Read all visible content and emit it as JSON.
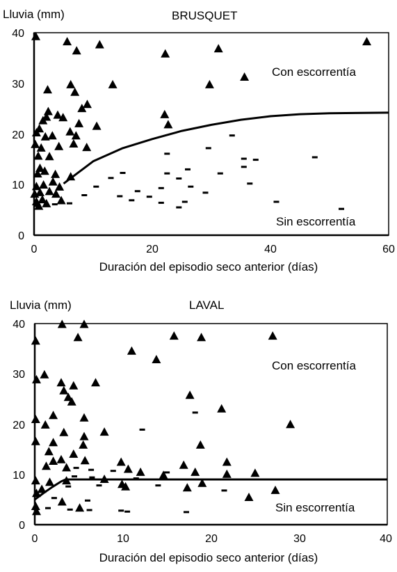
{
  "chart_data": [
    {
      "type": "scatter",
      "title": "BRUSQUET",
      "ylabel": "Lluvia (mm)",
      "xlabel": "Duración del episodio seco anterior (días)",
      "xlim": [
        0,
        60
      ],
      "ylim": [
        0,
        40
      ],
      "xticks": [
        "0",
        "20",
        "40",
        "60"
      ],
      "yticks": [
        "0",
        "10",
        "20",
        "30",
        "40"
      ],
      "grid": false,
      "annotations": [
        "Con escorrentía",
        "Sin escorrentía"
      ],
      "series": [
        {
          "marker": "triangle",
          "points": [
            [
              0.3,
              39.2
            ],
            [
              5.6,
              38.2
            ],
            [
              7.2,
              36.4
            ],
            [
              11.1,
              37.6
            ],
            [
              22.2,
              35.8
            ],
            [
              31.2,
              36.8
            ],
            [
              56.3,
              38.2
            ],
            [
              35.6,
              31.2
            ],
            [
              29.7,
              29.7
            ],
            [
              2.3,
              28.7
            ],
            [
              6.2,
              29.7
            ],
            [
              13.3,
              29.7
            ],
            [
              6.9,
              28.2
            ],
            [
              9.0,
              25.8
            ],
            [
              8.1,
              25.0
            ],
            [
              2.4,
              24.4
            ],
            [
              4.0,
              23.7
            ],
            [
              4.9,
              23.2
            ],
            [
              22.1,
              23.8
            ],
            [
              22.7,
              21.8
            ],
            [
              0.9,
              21.0
            ],
            [
              1.5,
              22.6
            ],
            [
              2.1,
              23.3
            ],
            [
              7.6,
              22.0
            ],
            [
              10.6,
              21.5
            ],
            [
              0.4,
              20.2
            ],
            [
              1.9,
              19.4
            ],
            [
              3.1,
              19.6
            ],
            [
              6.1,
              20.4
            ],
            [
              7.1,
              19.6
            ],
            [
              0.2,
              17.9
            ],
            [
              1.2,
              17.2
            ],
            [
              4.2,
              17.5
            ],
            [
              6.7,
              18.0
            ],
            [
              8.9,
              17.3
            ],
            [
              0.7,
              15.6
            ],
            [
              2.6,
              15.5
            ],
            [
              1.0,
              13.2
            ],
            [
              0.6,
              12.1
            ],
            [
              1.8,
              12.6
            ],
            [
              3.6,
              12.0
            ],
            [
              6.2,
              11.5
            ],
            [
              0.4,
              9.6
            ],
            [
              1.6,
              9.9
            ],
            [
              3.2,
              10.5
            ],
            [
              4.3,
              9.5
            ],
            [
              0.1,
              8.1
            ],
            [
              1.0,
              8.4
            ],
            [
              2.6,
              8.6
            ],
            [
              3.7,
              8.1
            ],
            [
              0.4,
              6.6
            ],
            [
              1.4,
              7.0
            ],
            [
              2.1,
              6.2
            ],
            [
              4.6,
              6.8
            ],
            [
              0.8,
              5.7
            ]
          ]
        },
        {
          "marker": "dash",
          "points": [
            [
              33.5,
              19.7
            ],
            [
              29.5,
              17.2
            ],
            [
              22.5,
              16.1
            ],
            [
              35.5,
              15.1
            ],
            [
              37.5,
              14.9
            ],
            [
              47.5,
              15.4
            ],
            [
              26.0,
              13.0
            ],
            [
              35.5,
              13.5
            ],
            [
              15.0,
              12.3
            ],
            [
              22.5,
              12.2
            ],
            [
              31.5,
              12.2
            ],
            [
              13.0,
              11.3
            ],
            [
              24.5,
              11.2
            ],
            [
              36.5,
              10.2
            ],
            [
              10.5,
              9.6
            ],
            [
              21.5,
              9.3
            ],
            [
              26.5,
              9.6
            ],
            [
              17.5,
              8.7
            ],
            [
              8.5,
              7.9
            ],
            [
              14.5,
              7.7
            ],
            [
              19.5,
              7.6
            ],
            [
              29.0,
              8.4
            ],
            [
              41.0,
              6.6
            ],
            [
              16.5,
              6.9
            ],
            [
              21.5,
              6.4
            ],
            [
              25.5,
              6.6
            ],
            [
              3.5,
              6.1
            ],
            [
              6.0,
              6.3
            ],
            [
              24.5,
              5.5
            ],
            [
              52.0,
              5.2
            ],
            [
              0.5,
              5.8
            ]
          ]
        }
      ],
      "threshold_curve": [
        [
          5.0,
          10.2
        ],
        [
          10.0,
          14.6
        ],
        [
          15.0,
          17.2
        ],
        [
          20.0,
          19.0
        ],
        [
          25.0,
          20.6
        ],
        [
          30.0,
          21.8
        ],
        [
          35.0,
          22.8
        ],
        [
          40.0,
          23.5
        ],
        [
          45.0,
          23.9
        ],
        [
          50.0,
          24.1
        ],
        [
          60.0,
          24.2
        ]
      ]
    },
    {
      "type": "scatter",
      "title": "LAVAL",
      "ylabel": "Lluvia (mm)",
      "xlabel": "Duración del episodio seco anterior (días)",
      "xlim": [
        0,
        40
      ],
      "ylim": [
        0,
        40
      ],
      "xticks": [
        "0",
        "10",
        "20",
        "30",
        "40"
      ],
      "yticks": [
        "0",
        "10",
        "20",
        "30",
        "40"
      ],
      "grid": false,
      "annotations": [
        "Con escorrentía",
        "Sin escorrentía"
      ],
      "series": [
        {
          "marker": "triangle",
          "points": [
            [
              0.1,
              36.5
            ],
            [
              3.1,
              39.8
            ],
            [
              5.6,
              39.8
            ],
            [
              4.9,
              37.2
            ],
            [
              15.8,
              37.5
            ],
            [
              18.9,
              37.2
            ],
            [
              27.0,
              37.5
            ],
            [
              11.0,
              34.5
            ],
            [
              13.8,
              32.8
            ],
            [
              1.1,
              29.8
            ],
            [
              0.2,
              28.8
            ],
            [
              3.0,
              28.2
            ],
            [
              4.4,
              27.6
            ],
            [
              6.9,
              28.2
            ],
            [
              3.3,
              26.6
            ],
            [
              3.8,
              25.3
            ],
            [
              4.2,
              24.4
            ],
            [
              17.6,
              25.7
            ],
            [
              21.2,
              23.0
            ],
            [
              2.1,
              21.7
            ],
            [
              5.6,
              21.2
            ],
            [
              0.1,
              20.9
            ],
            [
              1.2,
              19.8
            ],
            [
              29.0,
              19.9
            ],
            [
              3.3,
              18.3
            ],
            [
              5.6,
              17.5
            ],
            [
              7.9,
              18.4
            ],
            [
              0.1,
              16.5
            ],
            [
              2.1,
              16.3
            ],
            [
              5.5,
              15.8
            ],
            [
              18.8,
              15.8
            ],
            [
              1.6,
              14.5
            ],
            [
              4.4,
              14.0
            ],
            [
              2.1,
              12.6
            ],
            [
              3.0,
              12.9
            ],
            [
              5.7,
              12.7
            ],
            [
              9.8,
              12.4
            ],
            [
              16.9,
              11.8
            ],
            [
              21.8,
              12.4
            ],
            [
              1.3,
              11.6
            ],
            [
              3.6,
              11.3
            ],
            [
              10.6,
              11.0
            ],
            [
              12.0,
              10.4
            ],
            [
              14.6,
              9.8
            ],
            [
              18.2,
              10.4
            ],
            [
              21.8,
              10.0
            ],
            [
              25.0,
              10.2
            ],
            [
              0.1,
              8.7
            ],
            [
              1.7,
              8.4
            ],
            [
              3.6,
              8.7
            ],
            [
              7.9,
              9.0
            ],
            [
              9.9,
              8.0
            ],
            [
              17.3,
              7.3
            ],
            [
              19.0,
              8.2
            ],
            [
              0.2,
              6.2
            ],
            [
              0.8,
              7.0
            ],
            [
              10.3,
              7.5
            ],
            [
              27.3,
              6.8
            ],
            [
              24.3,
              5.4
            ],
            [
              0.1,
              3.6
            ],
            [
              3.1,
              4.5
            ],
            [
              5.1,
              3.3
            ],
            [
              0.2,
              2.6
            ]
          ]
        },
        {
          "marker": "dash",
          "points": [
            [
              18.2,
              22.3
            ],
            [
              12.2,
              18.9
            ],
            [
              4.7,
              11.3
            ],
            [
              6.4,
              10.9
            ],
            [
              8.9,
              10.7
            ],
            [
              15.0,
              10.4
            ],
            [
              4.5,
              9.6
            ],
            [
              6.5,
              9.4
            ],
            [
              8.5,
              9.0
            ],
            [
              11.5,
              9.2
            ],
            [
              3.8,
              7.6
            ],
            [
              7.3,
              7.8
            ],
            [
              14.0,
              7.8
            ],
            [
              21.5,
              6.8
            ],
            [
              2.2,
              5.3
            ],
            [
              6.0,
              4.8
            ],
            [
              9.8,
              2.8
            ],
            [
              10.5,
              2.6
            ],
            [
              17.2,
              2.5
            ],
            [
              1.5,
              3.3
            ],
            [
              4.0,
              3.0
            ],
            [
              6.2,
              2.9
            ]
          ]
        }
      ],
      "threshold_curve": [
        [
          0.0,
          5.0
        ],
        [
          1.0,
          6.3
        ],
        [
          2.0,
          7.5
        ],
        [
          3.0,
          8.6
        ],
        [
          3.5,
          9.0
        ],
        [
          40.0,
          9.0
        ]
      ]
    }
  ]
}
